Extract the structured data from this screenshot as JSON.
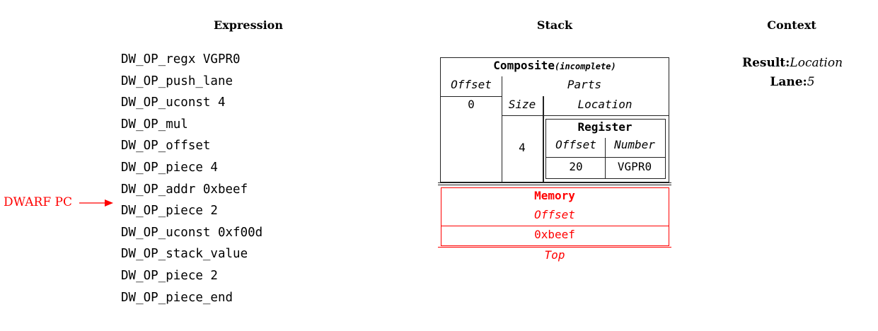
{
  "headers": {
    "expression": "Expression",
    "stack": "Stack",
    "context": "Context"
  },
  "expression": [
    "DW_OP_regx VGPR0",
    "DW_OP_push_lane",
    "DW_OP_uconst 4",
    "DW_OP_mul",
    "DW_OP_offset",
    "DW_OP_piece 4",
    "DW_OP_addr 0xbeef",
    "DW_OP_piece 2",
    "DW_OP_uconst 0xf00d",
    "DW_OP_stack_value",
    "DW_OP_piece 2",
    "DW_OP_piece_end"
  ],
  "pc_marker": {
    "label": "DWARF PC",
    "points_to_index": 7,
    "color": "#ff0000"
  },
  "stack": {
    "composite": {
      "title": "Composite",
      "status": "(incomplete)",
      "offset_label": "Offset",
      "offset": "0",
      "parts_label": "Parts",
      "size_label": "Size",
      "location_label": "Location",
      "parts": [
        {
          "size": "4",
          "location": {
            "title": "Register",
            "offset_label": "Offset",
            "number_label": "Number",
            "offset": "20",
            "number": "VGPR0"
          }
        }
      ]
    },
    "memory": {
      "title": "Memory",
      "offset_label": "Offset",
      "offset": "0xbeef",
      "color": "#ff0000"
    },
    "top_label": "Top"
  },
  "context": {
    "result_label": "Result:",
    "result_value": "Location",
    "lane_label": "Lane:",
    "lane_value": "5"
  }
}
